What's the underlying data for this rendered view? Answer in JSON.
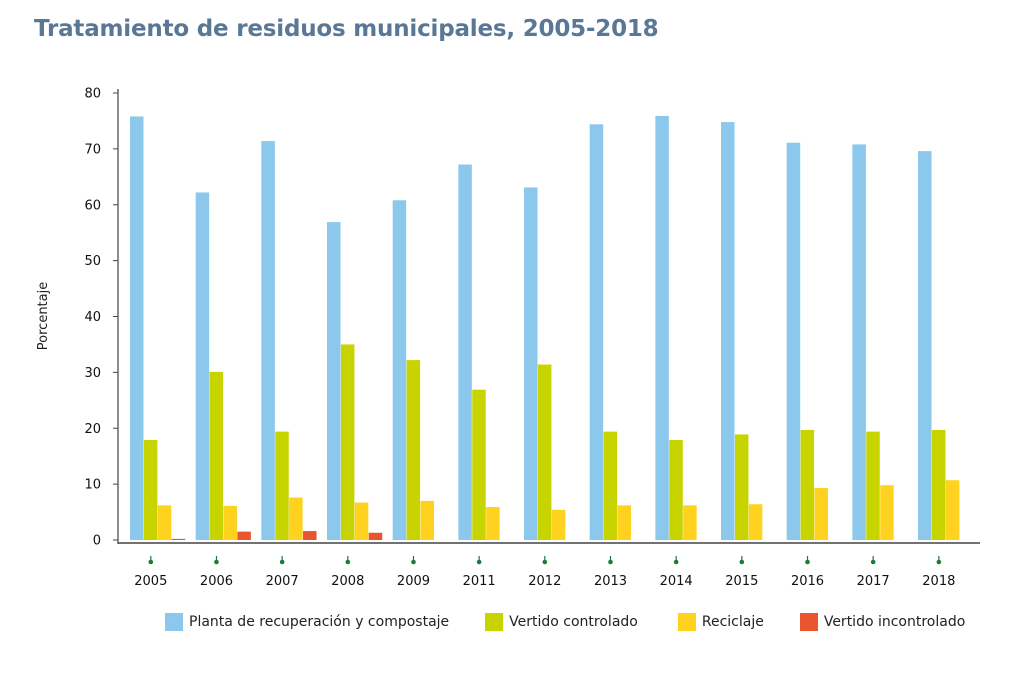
{
  "title": "Tratamiento de residuos municipales, 2005-2018",
  "chart_data": {
    "type": "bar",
    "title": "Tratamiento de residuos municipales, 2005-2018",
    "xlabel": "",
    "ylabel": "Porcentaje",
    "ylim": [
      0,
      80
    ],
    "yticks": [
      "0",
      "10",
      "20",
      "30",
      "40",
      "50",
      "60",
      "70",
      "80"
    ],
    "grid": false,
    "legend_position": "bottom",
    "categories": [
      "2005",
      "2006",
      "2007",
      "2008",
      "2009",
      "2011",
      "2012",
      "2013",
      "2014",
      "2015",
      "2016",
      "2017",
      "2018"
    ],
    "series": [
      {
        "name": "Planta de recuperación y compostaje",
        "color": "#8cc8ec",
        "values": [
          75.8,
          62.2,
          71.4,
          56.9,
          60.8,
          67.2,
          63.1,
          74.4,
          75.9,
          74.8,
          71.1,
          70.8,
          69.6
        ]
      },
      {
        "name": "Vertido controlado",
        "color": "#c8d400",
        "values": [
          17.9,
          30.1,
          19.4,
          35.0,
          32.2,
          26.9,
          31.4,
          19.4,
          17.9,
          18.9,
          19.7,
          19.4,
          19.7
        ]
      },
      {
        "name": "Reciclaje",
        "color": "#ffd21f",
        "values": [
          6.2,
          6.1,
          7.6,
          6.7,
          7.0,
          5.9,
          5.4,
          6.2,
          6.2,
          6.4,
          9.3,
          9.8,
          10.7
        ]
      },
      {
        "name": "Vertido incontrolado",
        "color": "#e8552e",
        "values": [
          0.2,
          1.5,
          1.6,
          1.3,
          0,
          0,
          0,
          0,
          0,
          0,
          0,
          0,
          0
        ]
      }
    ]
  }
}
